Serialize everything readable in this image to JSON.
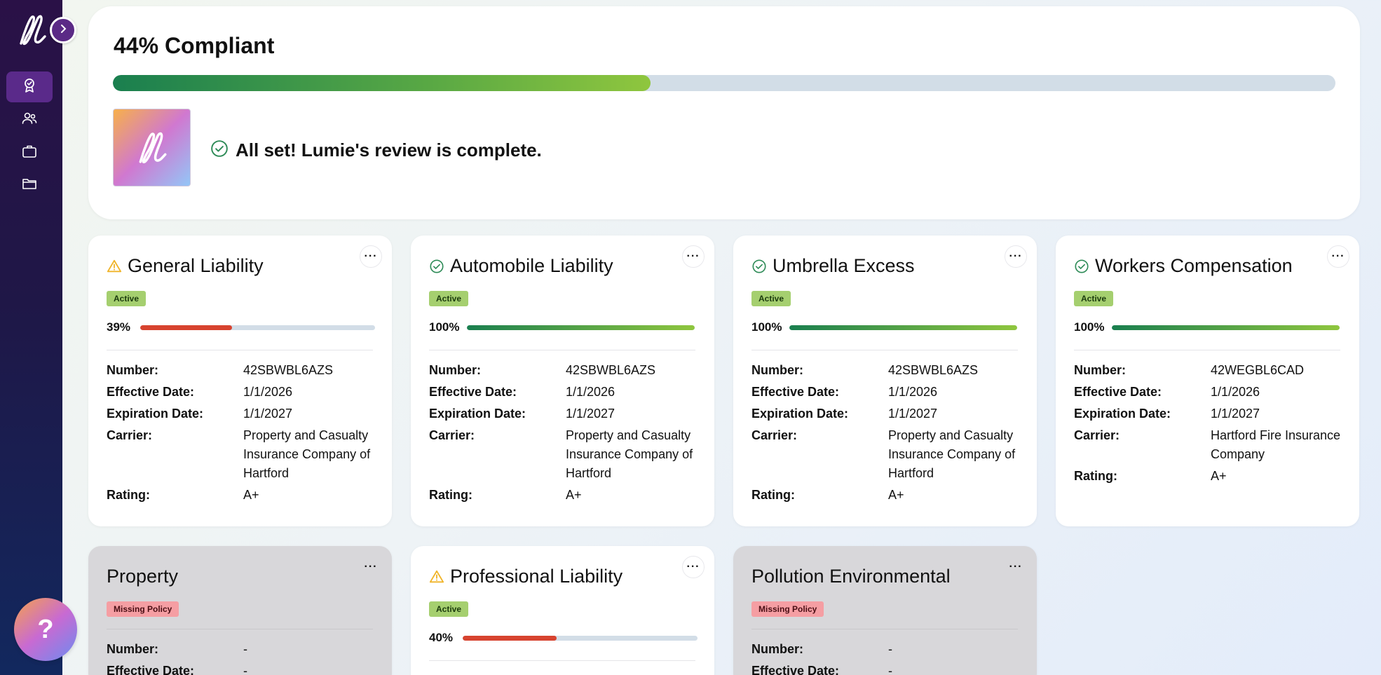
{
  "summary": {
    "compliance_text": "44% Compliant",
    "compliance_fraction": 0.44,
    "review_message": "All set! Lumie's review is complete."
  },
  "colors": {
    "sidebar_active": "#5a2a8a",
    "bar_green": "#8fc63e",
    "bar_red": "#d7432f",
    "badge_active": "#a5cf6f",
    "badge_missing": "#f59ea3",
    "warning": "#f0b429",
    "success": "#2e8b57"
  },
  "sidebar": {
    "items": [
      {
        "icon": "badge-check-icon"
      },
      {
        "icon": "users-icon"
      },
      {
        "icon": "briefcase-icon"
      },
      {
        "icon": "folder-icon"
      }
    ],
    "help_label": "?"
  },
  "labels": {
    "number": "Number:",
    "effective": "Effective Date:",
    "expiration": "Expiration Date:",
    "carrier": "Carrier:",
    "rating": "Rating:"
  },
  "policies": [
    {
      "title": "General Liability",
      "status": "Active",
      "icon": "warning-icon",
      "percent_text": "39%",
      "percent": 0.39,
      "number": "42SBWBL6AZS",
      "effective": "1/1/2026",
      "expiration": "1/1/2027",
      "carrier": "Property and Casualty Insurance Company of Hartford",
      "rating": "A+"
    },
    {
      "title": "Automobile Liability",
      "status": "Active",
      "icon": "check-circle-icon",
      "percent_text": "100%",
      "percent": 1.0,
      "number": "42SBWBL6AZS",
      "effective": "1/1/2026",
      "expiration": "1/1/2027",
      "carrier": "Property and Casualty Insurance Company of Hartford",
      "rating": "A+"
    },
    {
      "title": "Umbrella Excess",
      "status": "Active",
      "icon": "check-circle-icon",
      "percent_text": "100%",
      "percent": 1.0,
      "number": "42SBWBL6AZS",
      "effective": "1/1/2026",
      "expiration": "1/1/2027",
      "carrier": "Property and Casualty Insurance Company of Hartford",
      "rating": "A+"
    },
    {
      "title": "Workers Compensation",
      "status": "Active",
      "icon": "check-circle-icon",
      "percent_text": "100%",
      "percent": 1.0,
      "number": "42WEGBL6CAD",
      "effective": "1/1/2026",
      "expiration": "1/1/2027",
      "carrier": "Hartford Fire Insurance Company",
      "rating": "A+"
    },
    {
      "title": "Property",
      "status": "Missing Policy",
      "number": "-",
      "effective": "-"
    },
    {
      "title": "Professional Liability",
      "status": "Active",
      "icon": "warning-icon",
      "percent_text": "40%",
      "percent": 0.4
    },
    {
      "title": "Pollution Environmental",
      "status": "Missing Policy",
      "number": "-",
      "effective": "-"
    }
  ]
}
